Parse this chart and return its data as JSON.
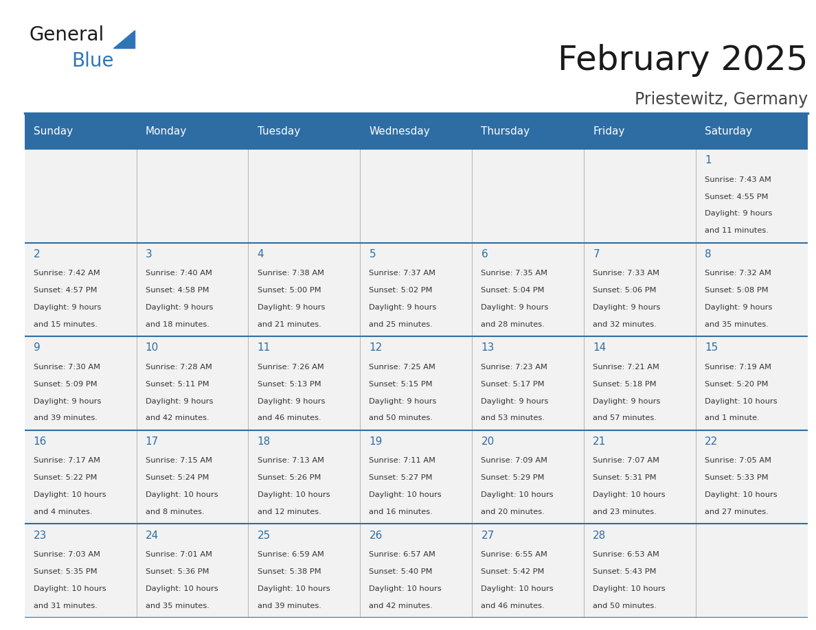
{
  "title": "February 2025",
  "subtitle": "Priestewitz, Germany",
  "header_bg": "#2E6DA4",
  "header_text": "#FFFFFF",
  "cell_bg": "#F2F2F2",
  "border_color": "#2E6DA4",
  "cell_border_color": "#AAAAAA",
  "day_names": [
    "Sunday",
    "Monday",
    "Tuesday",
    "Wednesday",
    "Thursday",
    "Friday",
    "Saturday"
  ],
  "title_color": "#1a1a1a",
  "subtitle_color": "#444444",
  "day_num_color": "#2E6DA4",
  "text_color": "#333333",
  "logo_general_color": "#1a1a1a",
  "logo_blue_color": "#2E75B6",
  "weeks": [
    [
      {
        "day": null,
        "info": ""
      },
      {
        "day": null,
        "info": ""
      },
      {
        "day": null,
        "info": ""
      },
      {
        "day": null,
        "info": ""
      },
      {
        "day": null,
        "info": ""
      },
      {
        "day": null,
        "info": ""
      },
      {
        "day": 1,
        "info": "Sunrise: 7:43 AM\nSunset: 4:55 PM\nDaylight: 9 hours\nand 11 minutes."
      }
    ],
    [
      {
        "day": 2,
        "info": "Sunrise: 7:42 AM\nSunset: 4:57 PM\nDaylight: 9 hours\nand 15 minutes."
      },
      {
        "day": 3,
        "info": "Sunrise: 7:40 AM\nSunset: 4:58 PM\nDaylight: 9 hours\nand 18 minutes."
      },
      {
        "day": 4,
        "info": "Sunrise: 7:38 AM\nSunset: 5:00 PM\nDaylight: 9 hours\nand 21 minutes."
      },
      {
        "day": 5,
        "info": "Sunrise: 7:37 AM\nSunset: 5:02 PM\nDaylight: 9 hours\nand 25 minutes."
      },
      {
        "day": 6,
        "info": "Sunrise: 7:35 AM\nSunset: 5:04 PM\nDaylight: 9 hours\nand 28 minutes."
      },
      {
        "day": 7,
        "info": "Sunrise: 7:33 AM\nSunset: 5:06 PM\nDaylight: 9 hours\nand 32 minutes."
      },
      {
        "day": 8,
        "info": "Sunrise: 7:32 AM\nSunset: 5:08 PM\nDaylight: 9 hours\nand 35 minutes."
      }
    ],
    [
      {
        "day": 9,
        "info": "Sunrise: 7:30 AM\nSunset: 5:09 PM\nDaylight: 9 hours\nand 39 minutes."
      },
      {
        "day": 10,
        "info": "Sunrise: 7:28 AM\nSunset: 5:11 PM\nDaylight: 9 hours\nand 42 minutes."
      },
      {
        "day": 11,
        "info": "Sunrise: 7:26 AM\nSunset: 5:13 PM\nDaylight: 9 hours\nand 46 minutes."
      },
      {
        "day": 12,
        "info": "Sunrise: 7:25 AM\nSunset: 5:15 PM\nDaylight: 9 hours\nand 50 minutes."
      },
      {
        "day": 13,
        "info": "Sunrise: 7:23 AM\nSunset: 5:17 PM\nDaylight: 9 hours\nand 53 minutes."
      },
      {
        "day": 14,
        "info": "Sunrise: 7:21 AM\nSunset: 5:18 PM\nDaylight: 9 hours\nand 57 minutes."
      },
      {
        "day": 15,
        "info": "Sunrise: 7:19 AM\nSunset: 5:20 PM\nDaylight: 10 hours\nand 1 minute."
      }
    ],
    [
      {
        "day": 16,
        "info": "Sunrise: 7:17 AM\nSunset: 5:22 PM\nDaylight: 10 hours\nand 4 minutes."
      },
      {
        "day": 17,
        "info": "Sunrise: 7:15 AM\nSunset: 5:24 PM\nDaylight: 10 hours\nand 8 minutes."
      },
      {
        "day": 18,
        "info": "Sunrise: 7:13 AM\nSunset: 5:26 PM\nDaylight: 10 hours\nand 12 minutes."
      },
      {
        "day": 19,
        "info": "Sunrise: 7:11 AM\nSunset: 5:27 PM\nDaylight: 10 hours\nand 16 minutes."
      },
      {
        "day": 20,
        "info": "Sunrise: 7:09 AM\nSunset: 5:29 PM\nDaylight: 10 hours\nand 20 minutes."
      },
      {
        "day": 21,
        "info": "Sunrise: 7:07 AM\nSunset: 5:31 PM\nDaylight: 10 hours\nand 23 minutes."
      },
      {
        "day": 22,
        "info": "Sunrise: 7:05 AM\nSunset: 5:33 PM\nDaylight: 10 hours\nand 27 minutes."
      }
    ],
    [
      {
        "day": 23,
        "info": "Sunrise: 7:03 AM\nSunset: 5:35 PM\nDaylight: 10 hours\nand 31 minutes."
      },
      {
        "day": 24,
        "info": "Sunrise: 7:01 AM\nSunset: 5:36 PM\nDaylight: 10 hours\nand 35 minutes."
      },
      {
        "day": 25,
        "info": "Sunrise: 6:59 AM\nSunset: 5:38 PM\nDaylight: 10 hours\nand 39 minutes."
      },
      {
        "day": 26,
        "info": "Sunrise: 6:57 AM\nSunset: 5:40 PM\nDaylight: 10 hours\nand 42 minutes."
      },
      {
        "day": 27,
        "info": "Sunrise: 6:55 AM\nSunset: 5:42 PM\nDaylight: 10 hours\nand 46 minutes."
      },
      {
        "day": 28,
        "info": "Sunrise: 6:53 AM\nSunset: 5:43 PM\nDaylight: 10 hours\nand 50 minutes."
      },
      {
        "day": null,
        "info": ""
      }
    ]
  ]
}
